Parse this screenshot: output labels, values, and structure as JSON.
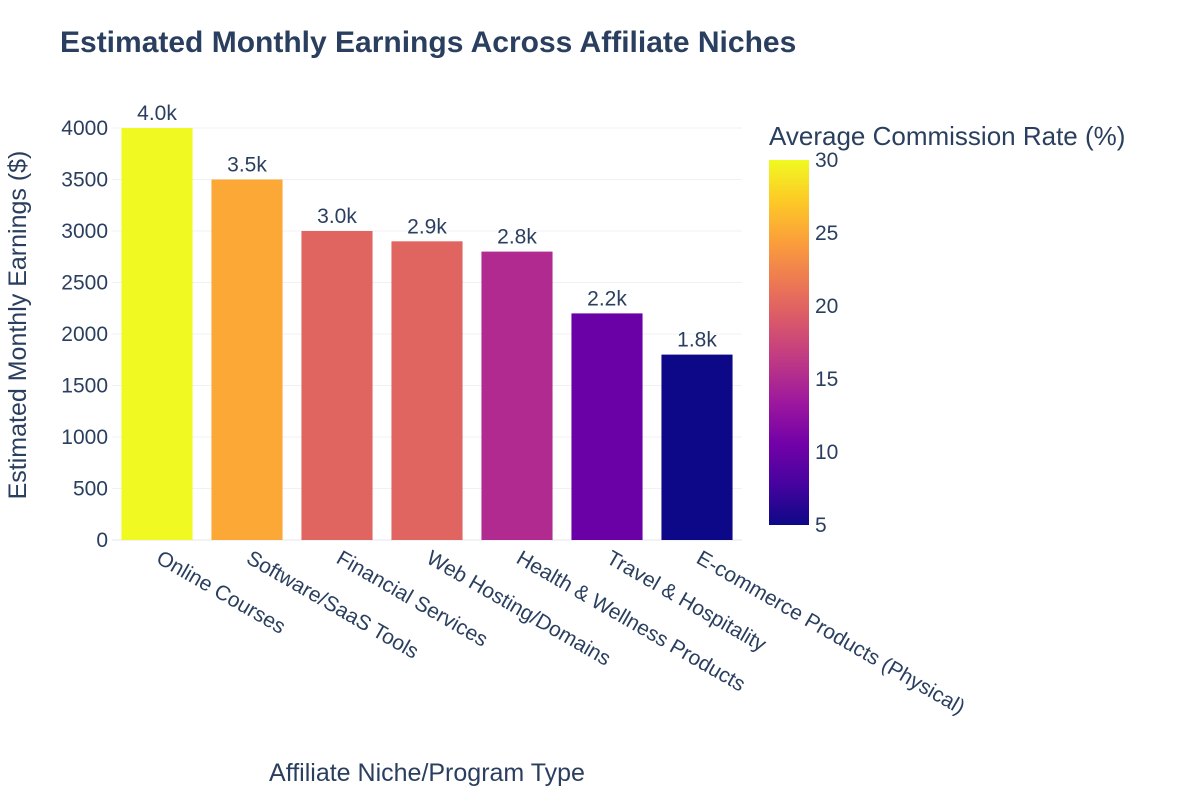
{
  "chart_data": {
    "type": "bar",
    "title": "Estimated Monthly Earnings Across Affiliate Niches",
    "xlabel": "Affiliate Niche/Program Type",
    "ylabel": "Estimated Monthly Earnings ($)",
    "categories": [
      "Online Courses",
      "Software/SaaS Tools",
      "Financial Services",
      "Web Hosting/Domains",
      "Health & Wellness Products",
      "Travel & Hospitality",
      "E-commerce Products (Physical)"
    ],
    "values": [
      4000,
      3500,
      3000,
      2900,
      2800,
      2200,
      1800
    ],
    "value_labels": [
      "4.0k",
      "3.5k",
      "3.0k",
      "2.9k",
      "2.8k",
      "2.2k",
      "1.8k"
    ],
    "commission_rates": [
      30,
      25,
      20,
      20,
      15,
      10,
      5
    ],
    "ylim": [
      0,
      4000
    ],
    "yticks": [
      0,
      500,
      1000,
      1500,
      2000,
      2500,
      3000,
      3500,
      4000
    ],
    "grid": true,
    "colorbar": {
      "title": "Average Commission Rate (%)",
      "range": [
        5,
        30
      ],
      "ticks": [
        5,
        10,
        15,
        20,
        25,
        30
      ],
      "colorscale": [
        "#0d0887",
        "#46039f",
        "#7201a8",
        "#9c179e",
        "#bd3786",
        "#d8576b",
        "#ed7953",
        "#fb9f3a",
        "#fdca26",
        "#f0f921"
      ]
    }
  }
}
